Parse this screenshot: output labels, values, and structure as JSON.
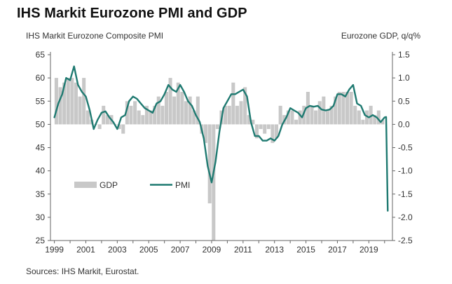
{
  "header": {
    "title": "IHS Markit Eurozone PMI and GDP",
    "left_axis_title": "IHS Markit Eurozone Composite PMI",
    "right_axis_title": "Eurozone GDP, q/q%"
  },
  "footer": {
    "source": "Sources: IHS Markit, Eurostat."
  },
  "legend": {
    "gdp_label": "GDP",
    "pmi_label": "PMI"
  },
  "colors": {
    "pmi_line": "#1f7a71",
    "gdp_bar": "#c8c8c8",
    "axis": "#666666"
  },
  "chart_data": {
    "type": "bar+line",
    "title": "IHS Markit Eurozone PMI and GDP",
    "x_range": [
      1998.75,
      2020.5
    ],
    "x_ticks": [
      "1999",
      "2001",
      "2003",
      "2005",
      "2007",
      "2009",
      "2011",
      "2013",
      "2015",
      "2017",
      "2019"
    ],
    "left_axis": {
      "label": "IHS Markit Eurozone Composite PMI",
      "ylim": [
        25,
        65
      ],
      "ticks": [
        "25",
        "30",
        "35",
        "40",
        "45",
        "50",
        "55",
        "60",
        "65"
      ]
    },
    "right_axis": {
      "label": "Eurozone GDP, q/q%",
      "ylim": [
        -2.5,
        1.5
      ],
      "ticks": [
        "-2.5",
        "-2.0",
        "-1.5",
        "-1.0",
        "-0.5",
        "0.0",
        "0.5",
        "1.0",
        "1.5"
      ]
    },
    "series": [
      {
        "name": "GDP",
        "type": "bar",
        "axis": "right",
        "x": [
          1999.0,
          1999.25,
          1999.5,
          1999.75,
          2000.0,
          2000.25,
          2000.5,
          2000.75,
          2001.0,
          2001.25,
          2001.5,
          2001.75,
          2002.0,
          2002.25,
          2002.5,
          2002.75,
          2003.0,
          2003.25,
          2003.5,
          2003.75,
          2004.0,
          2004.25,
          2004.5,
          2004.75,
          2005.0,
          2005.25,
          2005.5,
          2005.75,
          2006.0,
          2006.25,
          2006.5,
          2006.75,
          2007.0,
          2007.25,
          2007.5,
          2007.75,
          2008.0,
          2008.25,
          2008.5,
          2008.75,
          2009.0,
          2009.25,
          2009.5,
          2009.75,
          2010.0,
          2010.25,
          2010.5,
          2010.75,
          2011.0,
          2011.25,
          2011.5,
          2011.75,
          2012.0,
          2012.25,
          2012.5,
          2012.75,
          2013.0,
          2013.25,
          2013.5,
          2013.75,
          2014.0,
          2014.25,
          2014.5,
          2014.75,
          2015.0,
          2015.25,
          2015.5,
          2015.75,
          2016.0,
          2016.25,
          2016.5,
          2016.75,
          2017.0,
          2017.25,
          2017.5,
          2017.75,
          2018.0,
          2018.25,
          2018.5,
          2018.75,
          2019.0,
          2019.25,
          2019.5,
          2019.75
        ],
        "values": [
          1.0,
          0.8,
          0.9,
          1.0,
          1.0,
          0.9,
          0.6,
          1.0,
          0.3,
          0.1,
          0.0,
          -0.1,
          0.4,
          0.2,
          0.2,
          0.0,
          -0.1,
          -0.2,
          0.5,
          0.4,
          0.5,
          0.3,
          0.2,
          0.4,
          0.3,
          0.4,
          0.6,
          0.4,
          0.7,
          1.0,
          0.6,
          0.9,
          0.7,
          0.5,
          0.6,
          0.3,
          0.6,
          -0.2,
          -0.4,
          -1.7,
          -2.5,
          -0.1,
          0.3,
          0.4,
          0.4,
          0.9,
          0.4,
          0.5,
          0.8,
          0.2,
          0.1,
          -0.3,
          -0.1,
          -0.2,
          -0.1,
          -0.4,
          -0.3,
          0.4,
          0.2,
          0.3,
          0.3,
          0.1,
          0.3,
          0.4,
          0.7,
          0.4,
          0.3,
          0.5,
          0.6,
          0.3,
          0.4,
          0.6,
          0.7,
          0.7,
          0.7,
          0.7,
          0.4,
          0.3,
          0.1,
          0.3,
          0.4,
          0.2,
          0.3,
          0.1
        ]
      },
      {
        "name": "PMI",
        "type": "line",
        "axis": "left",
        "x": [
          1999.0,
          1999.25,
          1999.5,
          1999.75,
          2000.0,
          2000.25,
          2000.5,
          2000.75,
          2001.0,
          2001.25,
          2001.5,
          2001.75,
          2002.0,
          2002.25,
          2002.5,
          2002.75,
          2003.0,
          2003.25,
          2003.5,
          2003.75,
          2004.0,
          2004.25,
          2004.5,
          2004.75,
          2005.0,
          2005.25,
          2005.5,
          2005.75,
          2006.0,
          2006.25,
          2006.5,
          2006.75,
          2007.0,
          2007.25,
          2007.5,
          2007.75,
          2008.0,
          2008.25,
          2008.5,
          2008.75,
          2009.0,
          2009.25,
          2009.5,
          2009.75,
          2010.0,
          2010.25,
          2010.5,
          2010.75,
          2011.0,
          2011.25,
          2011.5,
          2011.75,
          2012.0,
          2012.25,
          2012.5,
          2012.75,
          2013.0,
          2013.25,
          2013.5,
          2013.75,
          2014.0,
          2014.25,
          2014.5,
          2014.75,
          2015.0,
          2015.25,
          2015.5,
          2015.75,
          2016.0,
          2016.25,
          2016.5,
          2016.75,
          2017.0,
          2017.25,
          2017.5,
          2017.75,
          2018.0,
          2018.25,
          2018.5,
          2018.75,
          2019.0,
          2019.25,
          2019.5,
          2019.75,
          2020.0,
          2020.1,
          2020.2
        ],
        "values": [
          51.5,
          54.5,
          56.5,
          60.0,
          59.5,
          62.5,
          58.5,
          57.0,
          56.0,
          53.0,
          49.0,
          51.0,
          52.5,
          52.8,
          51.5,
          50.5,
          49.0,
          51.5,
          52.0,
          55.0,
          56.0,
          55.5,
          54.5,
          53.5,
          53.0,
          52.5,
          54.5,
          55.0,
          56.5,
          58.5,
          57.5,
          57.0,
          58.5,
          57.0,
          55.0,
          54.0,
          52.0,
          50.5,
          47.0,
          41.0,
          37.5,
          42.0,
          48.5,
          53.5,
          55.0,
          56.5,
          56.5,
          57.0,
          57.5,
          56.0,
          50.5,
          47.5,
          47.5,
          46.5,
          46.5,
          47.0,
          46.5,
          47.5,
          50.0,
          51.5,
          53.5,
          53.0,
          52.5,
          51.5,
          53.5,
          54.0,
          53.8,
          54.0,
          53.2,
          53.0,
          53.2,
          54.0,
          56.5,
          56.5,
          56.0,
          57.5,
          58.5,
          54.5,
          54.0,
          52.0,
          51.5,
          52.0,
          51.5,
          50.5,
          51.5,
          51.6,
          31.4
        ]
      }
    ],
    "legend_placement": "lower-left inside plot",
    "grid": false
  }
}
